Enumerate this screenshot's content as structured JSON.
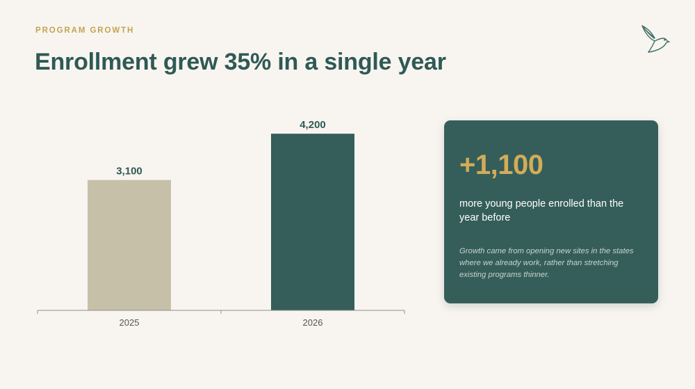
{
  "header": {
    "eyebrow": "PROGRAM GROWTH",
    "title": "Enrollment grew 35% in a single year"
  },
  "logo": {
    "icon": "bird-icon"
  },
  "chart_data": {
    "type": "bar",
    "categories": [
      "2025",
      "2026"
    ],
    "values": [
      3100,
      4200
    ],
    "data_labels": [
      "3,100",
      "4,200"
    ],
    "colors": [
      "#c7c0a8",
      "#355e5a"
    ],
    "ylim": [
      0,
      4500
    ],
    "grid": false,
    "legend": "none",
    "title": "",
    "xlabel": "",
    "ylabel": ""
  },
  "stat_card": {
    "value": "+1,100",
    "description": "more young people enrolled than the year before",
    "note": "Growth came from opening new sites in the states where we already work, rather than stretching existing programs thinner."
  },
  "colors": {
    "background": "#f8f5f0",
    "primary": "#355e5a",
    "accent": "#d2ac58",
    "muted_bar": "#c7c0a8"
  }
}
